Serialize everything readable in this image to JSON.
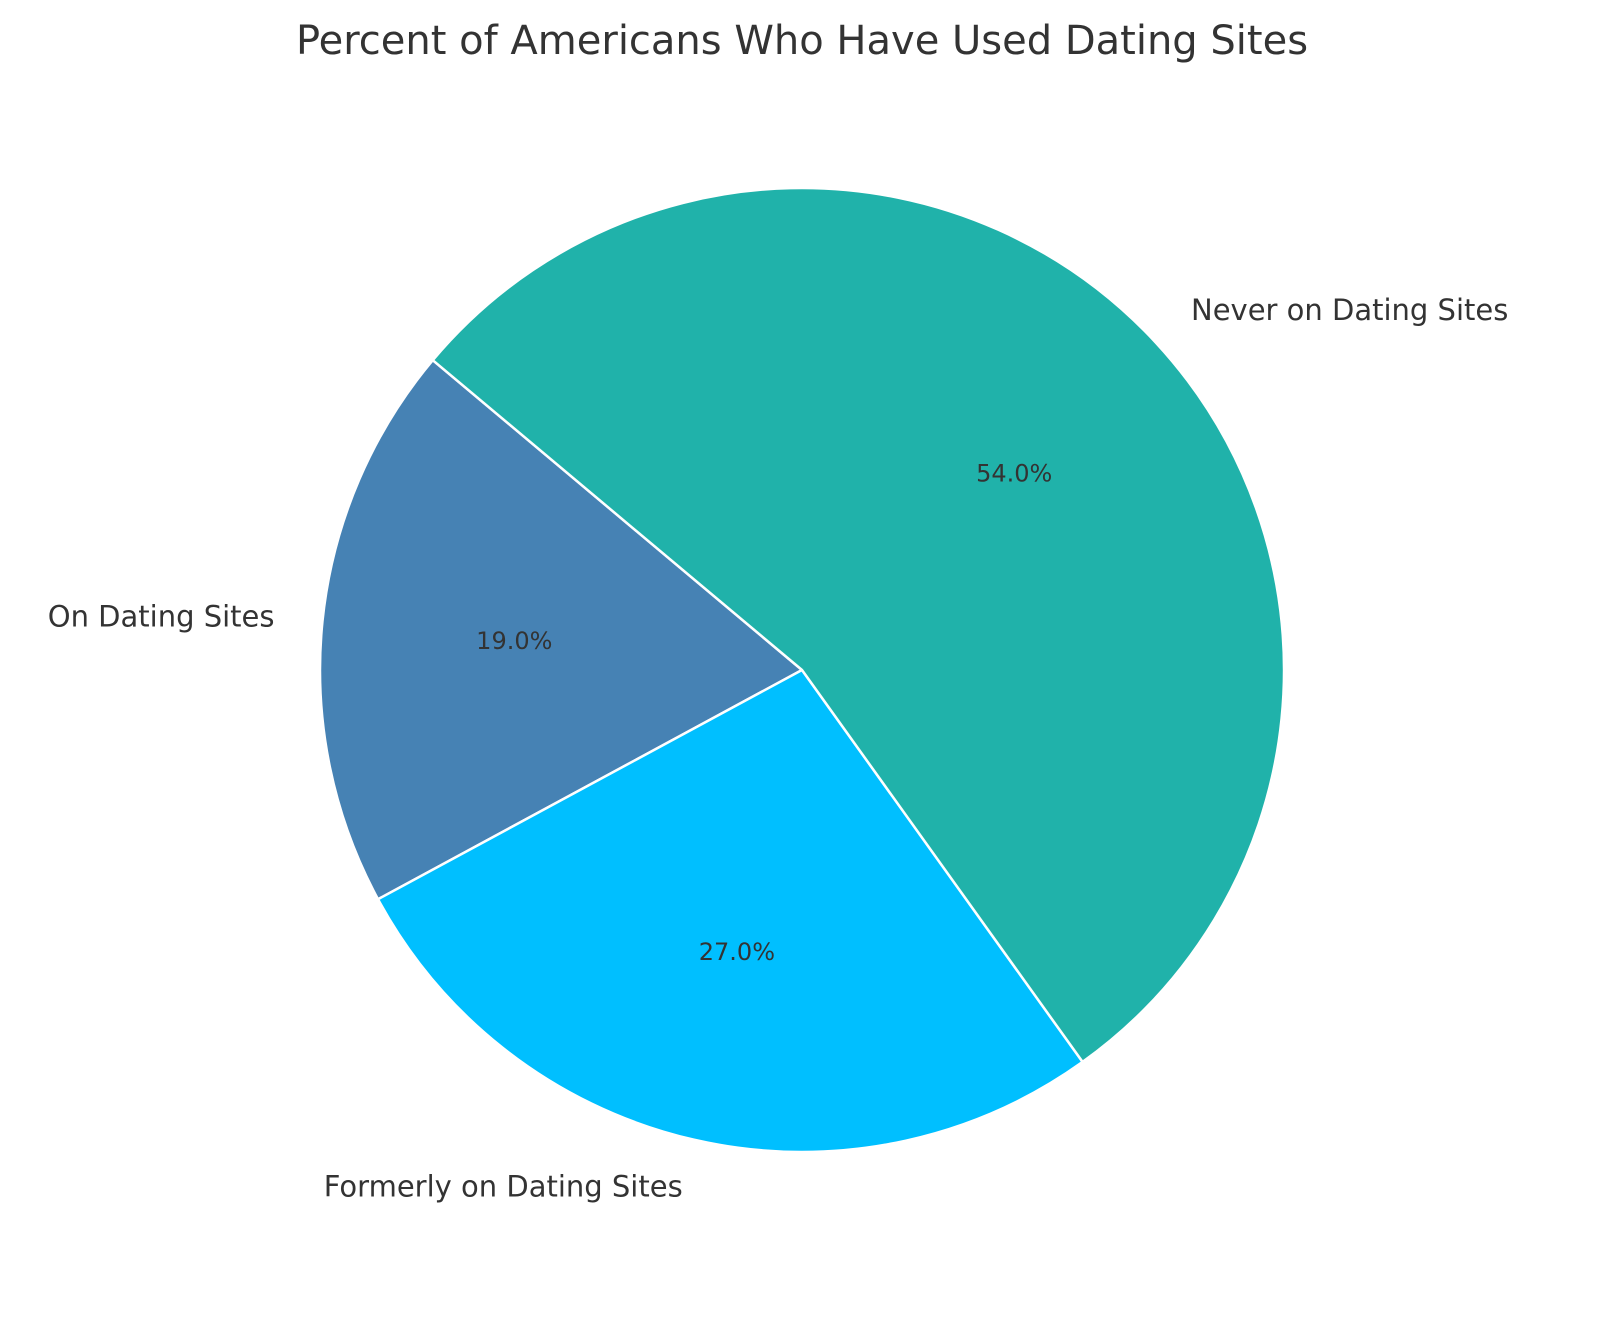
{
  "chart_data": {
    "type": "pie",
    "title": "Percent of Americans Who Have Used Dating Sites",
    "categories": [
      "On Dating Sites",
      "Formerly on Dating Sites",
      "Never on Dating Sites"
    ],
    "values": [
      19,
      27,
      54
    ],
    "percent_labels": [
      "19.0%",
      "27.0%",
      "54.0%"
    ],
    "colors": [
      "#4682B4",
      "#00BFFF",
      "#20B2AA"
    ],
    "start_angle_deg": 140,
    "direction": "counterclockwise",
    "legend": "none"
  }
}
